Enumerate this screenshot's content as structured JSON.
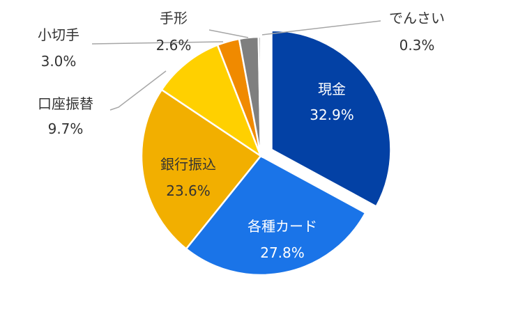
{
  "chart_data": {
    "type": "pie",
    "categories": [
      "現金",
      "各種カード",
      "銀行振込",
      "口座振替",
      "小切手",
      "手形",
      "でんさい"
    ],
    "values": [
      32.9,
      27.8,
      23.6,
      9.7,
      3.0,
      2.6,
      0.3
    ],
    "value_labels": [
      "32.9%",
      "27.8%",
      "23.6%",
      "9.7%",
      "3.0%",
      "2.6%",
      "0.3%"
    ],
    "colors": [
      "#0341A5",
      "#1A74E8",
      "#F2AF00",
      "#FFD000",
      "#F08A00",
      "#7F7F7F",
      "#A6A6A6"
    ],
    "exploded": "現金",
    "legend": "none"
  }
}
